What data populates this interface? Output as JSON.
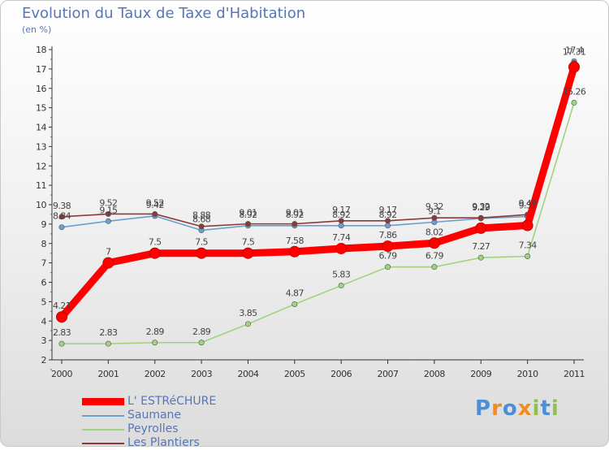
{
  "chart_data": {
    "type": "line",
    "title": "Evolution du Taux de Taxe d'Habitation",
    "subtitle": "(en %)",
    "xlabel": "",
    "ylabel": "",
    "categories": [
      "2000",
      "2001",
      "2002",
      "2003",
      "2004",
      "2005",
      "2006",
      "2007",
      "2008",
      "2009",
      "2010",
      "2011"
    ],
    "ylim": [
      2,
      18
    ],
    "yticks": [
      "2",
      "3",
      "4",
      "5",
      "6",
      "7",
      "8",
      "9",
      "10",
      "11",
      "12",
      "13",
      "14",
      "15",
      "16",
      "17",
      "18"
    ],
    "grid": false,
    "legend_position": "bottom-left",
    "series": [
      {
        "name": "L' ESTRéCHURE",
        "color": "#ff0000",
        "values": [
          4.21,
          7,
          7.5,
          7.5,
          7.5,
          7.58,
          7.74,
          7.86,
          8.02,
          8.79,
          8.93,
          17.1
        ],
        "labels": [
          "4.21",
          "7",
          "7.5",
          "7.5",
          "7.5",
          "7.58",
          "7.74",
          "7.86",
          "8.02",
          "",
          "",
          ""
        ]
      },
      {
        "name": "Saumane",
        "color": "#6a9fd2",
        "values": [
          8.84,
          9.15,
          9.42,
          8.68,
          8.92,
          8.92,
          8.92,
          8.92,
          9.1,
          9.29,
          9.39,
          17.4
        ],
        "labels": [
          "8.84",
          "9.15",
          "9.42",
          "8.68",
          "8.92",
          "8.92",
          "8.92",
          "8.92",
          "9.1",
          "9.29",
          "9.39",
          "17.4"
        ]
      },
      {
        "name": "Peyrolles",
        "color": "#9fd47f",
        "values": [
          2.83,
          2.83,
          2.89,
          2.89,
          3.85,
          4.87,
          5.83,
          6.79,
          6.79,
          7.27,
          7.34,
          15.26
        ],
        "labels": [
          "2.83",
          "2.83",
          "2.89",
          "2.89",
          "3.85",
          "4.87",
          "5.83",
          "6.79",
          "6.79",
          "7.27",
          "7.34",
          "15.26"
        ]
      },
      {
        "name": "Les Plantiers",
        "color": "#8b3a3a",
        "values": [
          9.38,
          9.52,
          9.52,
          8.88,
          9.01,
          9.01,
          9.17,
          9.17,
          9.32,
          9.32,
          9.49,
          17.31
        ],
        "labels": [
          "9.38",
          "9.52",
          "9.52",
          "8.88",
          "9.01",
          "9.01",
          "9.17",
          "9.17",
          "9.32",
          "9.32",
          "9.49",
          "17.31"
        ]
      }
    ]
  },
  "legend": {
    "items": [
      "L' ESTRéCHURE",
      "Saumane",
      "Peyrolles",
      "Les Plantiers"
    ]
  },
  "logo": {
    "text": "Proxiti",
    "letters": [
      "P",
      "r",
      "o",
      "x",
      "i",
      "t",
      "i"
    ],
    "colors": [
      "#4a8fd8",
      "#f28c1e",
      "#4a8fd8",
      "#f28c1e",
      "#8bc34a",
      "#4a8fd8",
      "#8bc34a"
    ]
  }
}
